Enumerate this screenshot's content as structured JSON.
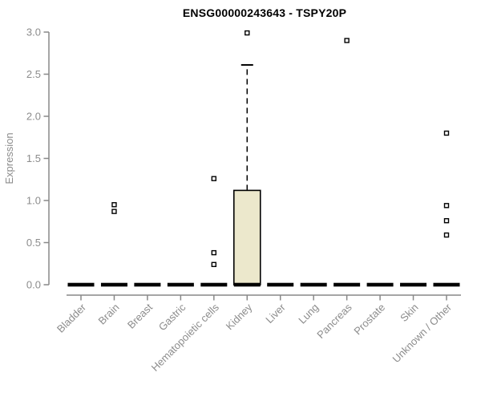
{
  "chart_data": {
    "type": "box",
    "title": "ENSG00000243643 - TSPY20P",
    "ylabel": "Expression",
    "xlabel": "",
    "ylim": [
      0.0,
      3.0
    ],
    "ytick_labels": [
      "0.0",
      "0.5",
      "1.0",
      "1.5",
      "2.0",
      "2.5",
      "3.0"
    ],
    "grid": "off",
    "legend": "none",
    "categories": [
      "Bladder",
      "Brain",
      "Breast",
      "Gastric",
      "Hematopoietic cells",
      "Kidney",
      "Liver",
      "Lung",
      "Pancreas",
      "Prostate",
      "Skin",
      "Unknown / Other"
    ],
    "boxes": [
      {
        "category": "Bladder",
        "min": 0,
        "q1": 0,
        "median": 0,
        "q3": 0,
        "max": 0,
        "outliers": []
      },
      {
        "category": "Brain",
        "min": 0,
        "q1": 0,
        "median": 0,
        "q3": 0,
        "max": 0,
        "outliers": [
          0.95,
          0.87
        ]
      },
      {
        "category": "Breast",
        "min": 0,
        "q1": 0,
        "median": 0,
        "q3": 0,
        "max": 0,
        "outliers": []
      },
      {
        "category": "Gastric",
        "min": 0,
        "q1": 0,
        "median": 0,
        "q3": 0,
        "max": 0,
        "outliers": []
      },
      {
        "category": "Hematopoietic cells",
        "min": 0,
        "q1": 0,
        "median": 0,
        "q3": 0,
        "max": 0,
        "outliers": [
          1.26,
          0.38,
          0.24
        ]
      },
      {
        "category": "Kidney",
        "min": 0,
        "q1": 0,
        "median": 0,
        "q3": 1.12,
        "max": 2.61,
        "outliers": [
          2.99
        ]
      },
      {
        "category": "Liver",
        "min": 0,
        "q1": 0,
        "median": 0,
        "q3": 0,
        "max": 0,
        "outliers": []
      },
      {
        "category": "Lung",
        "min": 0,
        "q1": 0,
        "median": 0,
        "q3": 0,
        "max": 0,
        "outliers": []
      },
      {
        "category": "Pancreas",
        "min": 0,
        "q1": 0,
        "median": 0,
        "q3": 0,
        "max": 0,
        "outliers": [
          2.9
        ]
      },
      {
        "category": "Prostate",
        "min": 0,
        "q1": 0,
        "median": 0,
        "q3": 0,
        "max": 0,
        "outliers": []
      },
      {
        "category": "Skin",
        "min": 0,
        "q1": 0,
        "median": 0,
        "q3": 0,
        "max": 0,
        "outliers": []
      },
      {
        "category": "Unknown / Other",
        "min": 0,
        "q1": 0,
        "median": 0,
        "q3": 0,
        "max": 0,
        "outliers": [
          1.8,
          0.94,
          0.76,
          0.59
        ]
      }
    ],
    "colors": {
      "box_fill": "#ece8cc",
      "box_line": "#000000",
      "outlier_fill": "#ffffff",
      "axis_line": "#888888",
      "axis_text": "#8c8c8c",
      "title_text": "#000000",
      "background": "#ffffff"
    }
  }
}
